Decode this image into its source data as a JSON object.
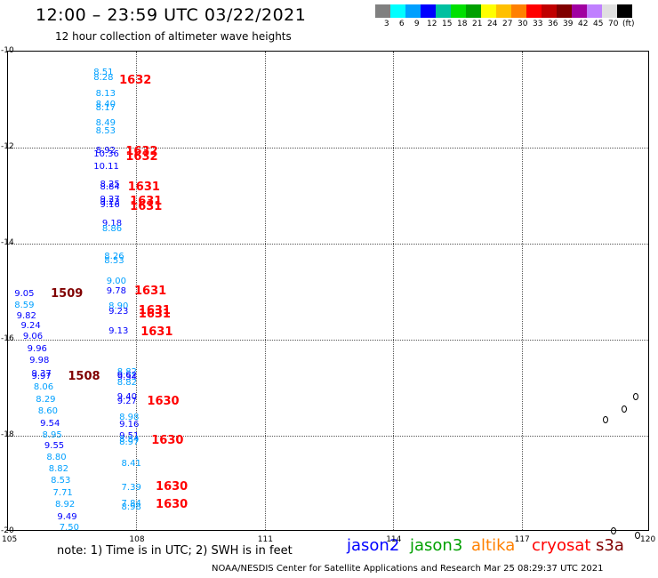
{
  "header": {
    "title": "12:00 – 23:59 UTC 03/22/2021",
    "subtitle": "12 hour collection of altimeter wave heights"
  },
  "colorbar": {
    "colors": [
      "#808080",
      "#00ffff",
      "#00a0ff",
      "#0000ff",
      "#00c0a0",
      "#00e000",
      "#00a000",
      "#ffff00",
      "#ffc000",
      "#ff8000",
      "#ff0000",
      "#c00000",
      "#800000",
      "#a000a0",
      "#c080ff",
      "#e0e0e0",
      "#000000"
    ],
    "labels": [
      "3",
      "6",
      "9",
      "12",
      "15",
      "18",
      "21",
      "24",
      "27",
      "30",
      "33",
      "36",
      "39",
      "42",
      "45",
      "70",
      "(ft)"
    ]
  },
  "axes": {
    "x_ticks": [
      "105",
      "108",
      "111",
      "114",
      "117",
      "120"
    ],
    "y_ticks": [
      "-10",
      "-12",
      "-14",
      "-16",
      "-18",
      "-20"
    ]
  },
  "chart_data": {
    "type": "scatter",
    "xlim": [
      105,
      120
    ],
    "ylim": [
      -20,
      -10
    ],
    "grid": true,
    "unit": "ft",
    "points": [
      {
        "x": 107.0,
        "y": -10.45,
        "v": "8.51",
        "color": "#00a0ff"
      },
      {
        "x": 107.0,
        "y": -10.55,
        "v": "8.28",
        "color": "#00a0ff"
      },
      {
        "x": 107.05,
        "y": -10.88,
        "v": "8.13",
        "color": "#00a0ff"
      },
      {
        "x": 107.05,
        "y": -11.12,
        "v": "8.40",
        "color": "#00a0ff"
      },
      {
        "x": 107.05,
        "y": -11.18,
        "v": "8.17",
        "color": "#00a0ff"
      },
      {
        "x": 107.05,
        "y": -11.5,
        "v": "8.49",
        "color": "#00a0ff"
      },
      {
        "x": 107.05,
        "y": -11.67,
        "v": "8.53",
        "color": "#00a0ff"
      },
      {
        "x": 107.05,
        "y": -12.08,
        "v": "8.92",
        "color": "#0000ff"
      },
      {
        "x": 107.0,
        "y": -12.15,
        "v": "10.36",
        "color": "#0000ff"
      },
      {
        "x": 107.0,
        "y": -12.4,
        "v": "10.11",
        "color": "#0000ff"
      },
      {
        "x": 107.15,
        "y": -12.78,
        "v": "8.25",
        "color": "#0000ff"
      },
      {
        "x": 107.15,
        "y": -12.83,
        "v": "8.84",
        "color": "#0000ff"
      },
      {
        "x": 107.15,
        "y": -13.1,
        "v": "9.27",
        "color": "#0000ff"
      },
      {
        "x": 107.15,
        "y": -13.15,
        "v": "9.23",
        "color": "#0000ff"
      },
      {
        "x": 107.15,
        "y": -13.2,
        "v": "9.16",
        "color": "#0000ff"
      },
      {
        "x": 107.2,
        "y": -13.6,
        "v": "9.18",
        "color": "#0000ff"
      },
      {
        "x": 107.2,
        "y": -13.7,
        "v": "8.86",
        "color": "#00a0ff"
      },
      {
        "x": 107.25,
        "y": -14.27,
        "v": "8.26",
        "color": "#00a0ff"
      },
      {
        "x": 107.25,
        "y": -14.37,
        "v": "8.53",
        "color": "#00a0ff"
      },
      {
        "x": 107.3,
        "y": -14.8,
        "v": "9.00",
        "color": "#00a0ff"
      },
      {
        "x": 107.3,
        "y": -15.0,
        "v": "9.78",
        "color": "#0000ff"
      },
      {
        "x": 107.35,
        "y": -15.32,
        "v": "8.90",
        "color": "#00a0ff"
      },
      {
        "x": 107.35,
        "y": -15.43,
        "v": "9.23",
        "color": "#0000ff"
      },
      {
        "x": 107.35,
        "y": -15.83,
        "v": "9.13",
        "color": "#0000ff"
      },
      {
        "x": 105.15,
        "y": -15.05,
        "v": "9.05",
        "color": "#0000ff"
      },
      {
        "x": 105.15,
        "y": -15.3,
        "v": "8.59",
        "color": "#00a0ff"
      },
      {
        "x": 105.2,
        "y": -15.52,
        "v": "9.82",
        "color": "#0000ff"
      },
      {
        "x": 105.3,
        "y": -15.73,
        "v": "9.24",
        "color": "#0000ff"
      },
      {
        "x": 105.35,
        "y": -15.95,
        "v": "9.06",
        "color": "#0000ff"
      },
      {
        "x": 105.45,
        "y": -16.2,
        "v": "9.96",
        "color": "#0000ff"
      },
      {
        "x": 105.5,
        "y": -16.45,
        "v": "9.98",
        "color": "#0000ff"
      },
      {
        "x": 105.55,
        "y": -16.72,
        "v": "9.37",
        "color": "#0000ff"
      },
      {
        "x": 105.55,
        "y": -16.77,
        "v": "9.97",
        "color": "#0000ff"
      },
      {
        "x": 105.6,
        "y": -17.0,
        "v": "8.06",
        "color": "#00a0ff"
      },
      {
        "x": 105.65,
        "y": -17.25,
        "v": "8.29",
        "color": "#00a0ff"
      },
      {
        "x": 105.7,
        "y": -17.5,
        "v": "8.60",
        "color": "#00a0ff"
      },
      {
        "x": 105.75,
        "y": -17.75,
        "v": "9.54",
        "color": "#0000ff"
      },
      {
        "x": 105.8,
        "y": -18.0,
        "v": "8.95",
        "color": "#00a0ff"
      },
      {
        "x": 105.85,
        "y": -18.23,
        "v": "9.55",
        "color": "#0000ff"
      },
      {
        "x": 105.9,
        "y": -18.47,
        "v": "8.80",
        "color": "#00a0ff"
      },
      {
        "x": 105.95,
        "y": -18.7,
        "v": "8.82",
        "color": "#00a0ff"
      },
      {
        "x": 106.0,
        "y": -18.95,
        "v": "8.53",
        "color": "#00a0ff"
      },
      {
        "x": 106.05,
        "y": -19.2,
        "v": "7.71",
        "color": "#00a0ff"
      },
      {
        "x": 106.1,
        "y": -19.45,
        "v": "8.92",
        "color": "#00a0ff"
      },
      {
        "x": 106.15,
        "y": -19.7,
        "v": "9.49",
        "color": "#0000ff"
      },
      {
        "x": 106.2,
        "y": -19.93,
        "v": "7.50",
        "color": "#00a0ff"
      },
      {
        "x": 107.55,
        "y": -16.68,
        "v": "8.82",
        "color": "#00a0ff"
      },
      {
        "x": 107.55,
        "y": -16.75,
        "v": "9.62",
        "color": "#0000ff"
      },
      {
        "x": 107.55,
        "y": -16.8,
        "v": "9.34",
        "color": "#0000ff"
      },
      {
        "x": 107.55,
        "y": -16.9,
        "v": "8.82",
        "color": "#00a0ff"
      },
      {
        "x": 107.55,
        "y": -17.2,
        "v": "9.40",
        "color": "#0000ff"
      },
      {
        "x": 107.55,
        "y": -17.3,
        "v": "9.27",
        "color": "#0000ff"
      },
      {
        "x": 107.6,
        "y": -17.63,
        "v": "8.98",
        "color": "#00a0ff"
      },
      {
        "x": 107.6,
        "y": -17.78,
        "v": "9.16",
        "color": "#0000ff"
      },
      {
        "x": 107.6,
        "y": -18.02,
        "v": "9.51",
        "color": "#0000ff"
      },
      {
        "x": 107.6,
        "y": -18.1,
        "v": "8.84",
        "color": "#00a0ff"
      },
      {
        "x": 107.6,
        "y": -18.15,
        "v": "8.97",
        "color": "#00a0ff"
      },
      {
        "x": 107.65,
        "y": -18.6,
        "v": "8.41",
        "color": "#00a0ff"
      },
      {
        "x": 107.65,
        "y": -19.1,
        "v": "7.39",
        "color": "#00a0ff"
      },
      {
        "x": 107.65,
        "y": -19.42,
        "v": "7.84",
        "color": "#00a0ff"
      },
      {
        "x": 107.65,
        "y": -19.5,
        "v": "8.98",
        "color": "#00a0ff"
      }
    ],
    "pass_labels": [
      {
        "x": 107.6,
        "y": -10.6,
        "t": "1632",
        "color": "#ff0000"
      },
      {
        "x": 107.75,
        "y": -12.08,
        "t": "1632",
        "color": "#ff0000"
      },
      {
        "x": 107.75,
        "y": -12.18,
        "t": "1632",
        "color": "#ff0000"
      },
      {
        "x": 107.8,
        "y": -12.82,
        "t": "1631",
        "color": "#ff0000"
      },
      {
        "x": 107.85,
        "y": -13.12,
        "t": "1631",
        "color": "#ff0000"
      },
      {
        "x": 107.85,
        "y": -13.22,
        "t": "1631",
        "color": "#ff0000"
      },
      {
        "x": 107.95,
        "y": -14.98,
        "t": "1631",
        "color": "#ff0000"
      },
      {
        "x": 108.05,
        "y": -15.38,
        "t": "1631",
        "color": "#ff0000"
      },
      {
        "x": 108.05,
        "y": -15.46,
        "t": "1631",
        "color": "#ff0000"
      },
      {
        "x": 108.1,
        "y": -15.83,
        "t": "1631",
        "color": "#ff0000"
      },
      {
        "x": 106.0,
        "y": -15.03,
        "t": "1509",
        "color": "#800000"
      },
      {
        "x": 106.4,
        "y": -16.75,
        "t": "1508",
        "color": "#800000"
      },
      {
        "x": 108.25,
        "y": -17.28,
        "t": "1630",
        "color": "#ff0000"
      },
      {
        "x": 108.35,
        "y": -18.1,
        "t": "1630",
        "color": "#ff0000"
      },
      {
        "x": 108.45,
        "y": -19.05,
        "t": "1630",
        "color": "#ff0000"
      },
      {
        "x": 108.45,
        "y": -19.42,
        "t": "1630",
        "color": "#ff0000"
      }
    ]
  },
  "footer": {
    "note": "note:  1) Time is in UTC;  2) SWH is in feet",
    "credit": "NOAA/NESDIS Center for Satellite Applications and Research    Mar 25 08:29:37 UTC 2021",
    "legend": [
      {
        "name": "jason2",
        "color": "#0000ff"
      },
      {
        "name": "jason3",
        "color": "#00a000"
      },
      {
        "name": "altika",
        "color": "#ff8000"
      },
      {
        "name": "cryosat",
        "color": "#ff0000"
      },
      {
        "name": "s3a",
        "color": "#800000"
      }
    ]
  }
}
